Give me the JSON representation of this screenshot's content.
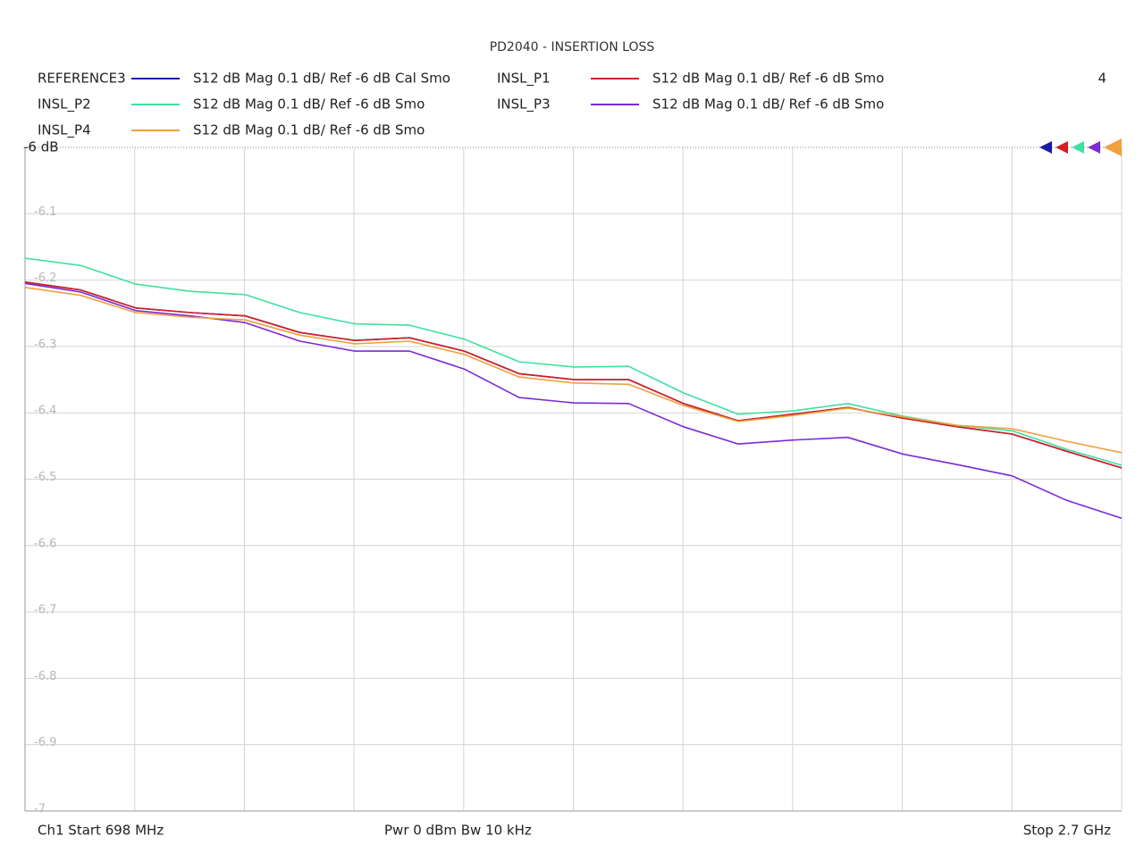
{
  "chart_data": {
    "type": "line",
    "title": "PD2040 - INSERTION LOSS",
    "trace_label": "4",
    "footer": {
      "start": "Ch1  Start  698 MHz",
      "middle": "Pwr  0 dBm  Bw  10 kHz",
      "stop": "Stop  2.7 GHz"
    },
    "x": [
      698,
      800,
      900,
      1000,
      1100,
      1200,
      1300,
      1400,
      1500,
      1600,
      1700,
      1800,
      1900,
      2000,
      2100,
      2200,
      2300,
      2400,
      2500,
      2600,
      2700
    ],
    "xlim": [
      698,
      2700
    ],
    "ylim": [
      -7,
      -6
    ],
    "yticks": [
      {
        "value": -6,
        "label": "-6 dB"
      },
      -6.1,
      -6.2,
      -6.3,
      -6.4,
      -6.5,
      -6.6,
      -6.7,
      -6.8,
      -6.9,
      -7
    ],
    "grid": true,
    "series": [
      {
        "name": "REFERENCE3",
        "description": "S12  dB Mag  0.1 dB/ Ref -6 dB  Cal Smo",
        "color": "#1a1aa6",
        "values": [
          -6.203,
          -6.215,
          -6.242,
          -6.249,
          -6.254,
          -6.279,
          -6.291,
          -6.287,
          -6.307,
          -6.341,
          -6.35,
          -6.35,
          -6.386,
          -6.412,
          -6.402,
          -6.392,
          -6.408,
          -6.421,
          -6.432,
          -6.458,
          -6.483
        ]
      },
      {
        "name": "INSL_P1",
        "description": "S12  dB Mag  0.1 dB/ Ref -6 dB  Smo",
        "color": "#d42020",
        "values": [
          -6.203,
          -6.215,
          -6.242,
          -6.249,
          -6.254,
          -6.279,
          -6.291,
          -6.287,
          -6.307,
          -6.341,
          -6.35,
          -6.35,
          -6.386,
          -6.412,
          -6.402,
          -6.392,
          -6.408,
          -6.421,
          -6.432,
          -6.458,
          -6.483
        ]
      },
      {
        "name": "INSL_P2",
        "description": "S12  dB Mag  0.1 dB/ Ref -6 dB  Smo",
        "color": "#40e0a0",
        "values": [
          -6.167,
          -6.178,
          -6.206,
          -6.217,
          -6.222,
          -6.249,
          -6.266,
          -6.268,
          -6.289,
          -6.323,
          -6.331,
          -6.33,
          -6.37,
          -6.402,
          -6.397,
          -6.386,
          -6.405,
          -6.419,
          -6.427,
          -6.455,
          -6.479
        ]
      },
      {
        "name": "INSL_P3",
        "description": "S12  dB Mag  0.1 dB/ Ref -6 dB  Smo",
        "color": "#7a2ad6",
        "values": [
          -6.205,
          -6.218,
          -6.246,
          -6.254,
          -6.264,
          -6.292,
          -6.307,
          -6.307,
          -6.334,
          -6.377,
          -6.385,
          -6.386,
          -6.421,
          -6.447,
          -6.441,
          -6.437,
          -6.462,
          -6.478,
          -6.495,
          -6.532,
          -6.559
        ]
      },
      {
        "name": "INSL_P4",
        "description": "S12  dB Mag  0.1 dB/ Ref -6 dB  Smo",
        "color": "#f0a040",
        "values": [
          -6.211,
          -6.223,
          -6.249,
          -6.256,
          -6.26,
          -6.283,
          -6.296,
          -6.292,
          -6.312,
          -6.346,
          -6.355,
          -6.357,
          -6.389,
          -6.413,
          -6.404,
          -6.393,
          -6.406,
          -6.419,
          -6.424,
          -6.443,
          -6.46
        ]
      }
    ]
  }
}
